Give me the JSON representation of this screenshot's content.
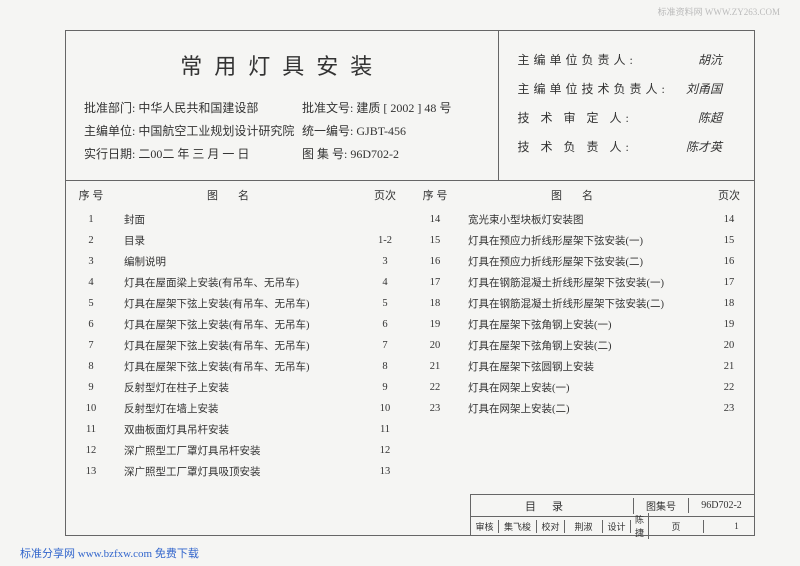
{
  "watermark_top": "标准资料网 WWW.ZY263.COM",
  "watermark_bottom": "标准分享网 www.bzfxw.com 免费下载",
  "title": "常用灯具安装",
  "meta": {
    "approve_dept_label": "批准部门:",
    "approve_dept": "中华人民共和国建设部",
    "approve_no_label": "批准文号:",
    "approve_no": "建质 [ 2002 ] 48 号",
    "editor_label": "主编单位:",
    "editor": "中国航空工业规划设计研究院",
    "unified_no_label": "统一编号:",
    "unified_no": "GJBT-456",
    "date_label": "实行日期:",
    "date": "二00二 年 三 月 一 日",
    "atlas_label": "图 集 号:",
    "atlas": "96D702-2"
  },
  "signatures": {
    "s1_label": "主编单位负责人:",
    "s1_val": "胡沆",
    "s2_label": "主编单位技术负责人:",
    "s2_val": "刘甬国",
    "s3_label": "技 术 审 定 人:",
    "s3_val": "陈超",
    "s4_label": "技 术 负 责 人:",
    "s4_val": "陈才英"
  },
  "thead": {
    "seq": "序 号",
    "name": "图名",
    "page": "页次"
  },
  "left_rows": [
    {
      "seq": "1",
      "name": "封面",
      "page": ""
    },
    {
      "seq": "2",
      "name": "目录",
      "page": "1-2"
    },
    {
      "seq": "3",
      "name": "编制说明",
      "page": "3"
    },
    {
      "seq": "4",
      "name": "灯具在屋面梁上安装(有吊车、无吊车)",
      "page": "4"
    },
    {
      "seq": "5",
      "name": "灯具在屋架下弦上安装(有吊车、无吊车)",
      "page": "5"
    },
    {
      "seq": "6",
      "name": "灯具在屋架下弦上安装(有吊车、无吊车)",
      "page": "6"
    },
    {
      "seq": "7",
      "name": "灯具在屋架下弦上安装(有吊车、无吊车)",
      "page": "7"
    },
    {
      "seq": "8",
      "name": "灯具在屋架下弦上安装(有吊车、无吊车)",
      "page": "8"
    },
    {
      "seq": "9",
      "name": "反射型灯在柱子上安装",
      "page": "9"
    },
    {
      "seq": "10",
      "name": "反射型灯在墙上安装",
      "page": "10"
    },
    {
      "seq": "11",
      "name": "双曲板面灯具吊杆安装",
      "page": "11"
    },
    {
      "seq": "12",
      "name": "深广照型工厂罩灯具吊杆安装",
      "page": "12"
    },
    {
      "seq": "13",
      "name": "深广照型工厂罩灯具吸顶安装",
      "page": "13"
    }
  ],
  "right_rows": [
    {
      "seq": "14",
      "name": "宽光束小型块板灯安装图",
      "page": "14"
    },
    {
      "seq": "15",
      "name": "灯具在预应力折线形屋架下弦安装(一)",
      "page": "15"
    },
    {
      "seq": "16",
      "name": "灯具在预应力折线形屋架下弦安装(二)",
      "page": "16"
    },
    {
      "seq": "17",
      "name": "灯具在钢筋混凝土折线形屋架下弦安装(一)",
      "page": "17"
    },
    {
      "seq": "18",
      "name": "灯具在钢筋混凝土折线形屋架下弦安装(二)",
      "page": "18"
    },
    {
      "seq": "19",
      "name": "灯具在屋架下弦角钢上安装(一)",
      "page": "19"
    },
    {
      "seq": "20",
      "name": "灯具在屋架下弦角钢上安装(二)",
      "page": "20"
    },
    {
      "seq": "21",
      "name": "灯具在屋架下弦圆钢上安装",
      "page": "21"
    },
    {
      "seq": "22",
      "name": "灯具在网架上安装(一)",
      "page": "22"
    },
    {
      "seq": "23",
      "name": "灯具在网架上安装(二)",
      "page": "23"
    }
  ],
  "footer": {
    "mulv": "目录",
    "atlas_label": "图集号",
    "atlas_val": "96D702-2",
    "r2_1": "审核",
    "r2_2": "集飞梭",
    "r2_3": "校对",
    "r2_4": "荆淑",
    "r2_5": "设计",
    "r2_6": "陈捷",
    "r2_7": "页",
    "r2_8": "1"
  }
}
